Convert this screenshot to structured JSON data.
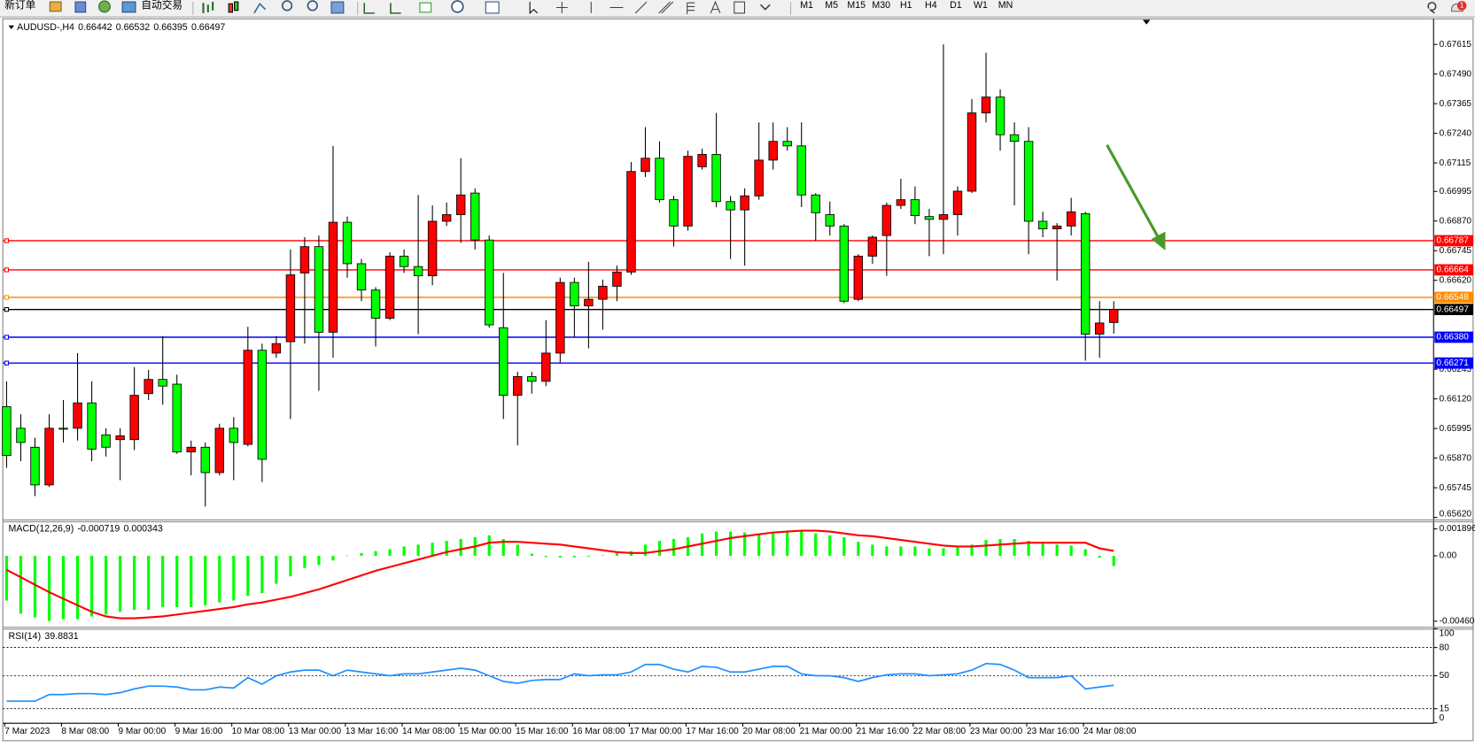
{
  "toolbar": {
    "buttons": [
      "新订单",
      "自动交易"
    ],
    "timeframes": [
      "M1",
      "M5",
      "M15",
      "M30",
      "H1",
      "H4",
      "D1",
      "W1",
      "MN"
    ],
    "badge": "1"
  },
  "chart_data": [
    {
      "type": "candlestick",
      "title": "AUDUSD-,H4",
      "categories": [
        "7 Mar 2023",
        null,
        null,
        null,
        "8 Mar 08:00",
        null,
        null,
        null,
        "9 Mar 00:00",
        null,
        null,
        null,
        "9 Mar 16:00",
        null,
        null,
        null,
        "10 Mar 08:00",
        null,
        null,
        null,
        "13 Mar 00:00",
        null,
        null,
        null,
        "13 Mar 16:00",
        null,
        null,
        null,
        "14 Mar 08:00",
        null,
        null,
        null,
        "15 Mar 00:00",
        null,
        null,
        null,
        "15 Mar 16:00",
        null,
        null,
        null,
        "16 Mar 08:00",
        null,
        null,
        null,
        "17 Mar 00:00",
        null,
        null,
        null,
        "17 Mar 16:00",
        null,
        null,
        null,
        "20 Mar 08:00",
        null,
        null,
        null,
        "21 Mar 00:00",
        null,
        null,
        null,
        "21 Mar 16:00",
        null,
        null,
        null,
        "22 Mar 08:00",
        null,
        null,
        null,
        "23 Mar 00:00",
        null,
        null,
        null,
        "23 Mar 16:00",
        null,
        null,
        null,
        "24 Mar 08:00",
        null,
        null
      ],
      "open": [
        0.66087,
        0.65996,
        0.65916,
        0.65757,
        0.65996,
        0.65996,
        0.66103,
        0.65968,
        0.65948,
        0.65948,
        0.66142,
        0.66202,
        0.66182,
        0.65896,
        0.65916,
        0.65809,
        0.65996,
        0.65928,
        0.66325,
        0.66313,
        0.66361,
        0.66651,
        0.66762,
        0.66401,
        0.66865,
        0.6669,
        0.66579,
        0.6646,
        0.66722,
        0.66678,
        0.66639,
        0.66869,
        0.66897,
        0.66988,
        0.6679,
        0.6642,
        0.66135,
        0.66214,
        0.66194,
        0.66313,
        0.66611,
        0.66512,
        0.6654,
        0.66595,
        0.66655,
        0.67079,
        0.67135,
        0.6696,
        0.66849,
        0.67099,
        0.67151,
        0.66952,
        0.66917,
        0.66976,
        0.67127,
        0.67206,
        0.67187,
        0.6698,
        0.66897,
        0.66849,
        0.6654,
        0.66722,
        0.66809,
        0.66936,
        0.6696,
        0.66889,
        0.66877,
        0.66897,
        0.66996,
        0.67326,
        0.67393,
        0.67234,
        0.67206,
        0.66869,
        0.66837,
        0.66849,
        0.66901,
        0.66393,
        0.66442
      ],
      "high": [
        0.66194,
        0.66055,
        0.65956,
        0.66055,
        0.66115,
        0.66313,
        0.66194,
        0.65996,
        0.65996,
        0.66254,
        0.66242,
        0.66385,
        0.66222,
        0.65944,
        0.65936,
        0.66015,
        0.66043,
        0.66424,
        0.66353,
        0.66385,
        0.6675,
        0.66802,
        0.66809,
        0.67187,
        0.66889,
        0.6671,
        0.66591,
        0.66738,
        0.6675,
        0.6698,
        0.66936,
        0.66948,
        0.67135,
        0.67008,
        0.66809,
        0.66651,
        0.66234,
        0.66234,
        0.66452,
        0.66631,
        0.66631,
        0.66698,
        0.66623,
        0.66682,
        0.67119,
        0.67266,
        0.67206,
        0.66976,
        0.67167,
        0.67175,
        0.67326,
        0.66976,
        0.67008,
        0.67286,
        0.67286,
        0.67266,
        0.67286,
        0.66988,
        0.66952,
        0.66857,
        0.6673,
        0.66809,
        0.66948,
        0.67048,
        0.67016,
        0.66921,
        0.67615,
        0.67016,
        0.67385,
        0.6758,
        0.67425,
        0.67286,
        0.67266,
        0.66909,
        0.66861,
        0.66968,
        0.66909,
        0.66532,
        0.66532
      ],
      "low": [
        0.65829,
        0.65857,
        0.6571,
        0.65749,
        0.65936,
        0.65944,
        0.65857,
        0.65877,
        0.65777,
        0.65904,
        0.66115,
        0.66095,
        0.65888,
        0.65797,
        0.65666,
        0.65797,
        0.65777,
        0.6592,
        0.65769,
        0.66293,
        0.66035,
        0.66353,
        0.66154,
        0.66293,
        0.66631,
        0.66532,
        0.66341,
        0.66452,
        0.66651,
        0.66393,
        0.66599,
        0.66849,
        0.66778,
        0.6675,
        0.6642,
        0.66035,
        0.65924,
        0.66142,
        0.66174,
        0.66274,
        0.66381,
        0.66333,
        0.66412,
        0.66532,
        0.66643,
        0.67056,
        0.66948,
        0.66762,
        0.66829,
        0.67087,
        0.66929,
        0.6671,
        0.66682,
        0.6696,
        0.67087,
        0.67167,
        0.66929,
        0.66786,
        0.66809,
        0.66524,
        0.66532,
        0.6669,
        0.66639,
        0.66921,
        0.66857,
        0.66722,
        0.6673,
        0.66809,
        0.66988,
        0.67286,
        0.67167,
        0.66936,
        0.6673,
        0.66802,
        0.66619,
        0.66809,
        0.66281,
        0.66293,
        0.66395
      ],
      "close": [
        0.65881,
        0.65936,
        0.65757,
        0.65996,
        0.65993,
        0.66103,
        0.65908,
        0.65916,
        0.65964,
        0.66135,
        0.66202,
        0.66174,
        0.65896,
        0.65916,
        0.65809,
        0.65996,
        0.65936,
        0.66325,
        0.65865,
        0.66353,
        0.66643,
        0.66762,
        0.66401,
        0.66865,
        0.6669,
        0.66579,
        0.6646,
        0.66722,
        0.66678,
        0.66639,
        0.66869,
        0.66897,
        0.6698,
        0.6679,
        0.66432,
        0.66135,
        0.66214,
        0.66194,
        0.66313,
        0.66611,
        0.66512,
        0.6654,
        0.66595,
        0.66655,
        0.67079,
        0.67135,
        0.6696,
        0.66849,
        0.67143,
        0.67151,
        0.66952,
        0.66917,
        0.66976,
        0.67127,
        0.67206,
        0.67187,
        0.6698,
        0.66905,
        0.66849,
        0.66532,
        0.66722,
        0.66802,
        0.66936,
        0.6696,
        0.66893,
        0.66877,
        0.66897,
        0.66996,
        0.67326,
        0.67393,
        0.67234,
        0.67206,
        0.66869,
        0.66837,
        0.66849,
        0.66909,
        0.66393,
        0.6644,
        0.66497
      ],
      "up_color": "#ff0000",
      "down_color": "#00ff00",
      "wick_color": "#000000",
      "ylim": [
        0.65615,
        0.67715
      ],
      "yticks": [
        0.67615,
        {
          "value": 0.6749,
          "label": "0.67490"
        },
        0.67365,
        {
          "value": 0.6724,
          "label": "0.67240"
        },
        0.67115,
        0.66995,
        {
          "value": 0.6687,
          "label": "0.66870"
        },
        0.66745,
        {
          "value": 0.6662,
          "label": "0.66620"
        },
        0.66245,
        {
          "value": 0.6612,
          "label": "0.66120"
        },
        0.65995,
        {
          "value": 0.6587,
          "label": "0.65870"
        },
        0.65745,
        {
          "value": 0.6562,
          "label": "0.65620"
        }
      ],
      "grid": false,
      "levels": [
        {
          "value": 0.66787,
          "color": "#ff0000"
        },
        {
          "value": 0.66664,
          "color": "#ff0000"
        },
        {
          "value": 0.66548,
          "color": "#ff8c00"
        },
        {
          "value": 0.66497,
          "color": "#000000"
        },
        {
          "value": 0.6638,
          "label": "0.66380",
          "color": "#0000ff"
        },
        {
          "value": 0.66271,
          "color": "#0000ff"
        }
      ]
    },
    {
      "type": "macd",
      "title": "MACD(12,26,9)",
      "histogram": [
        -0.003153,
        -0.004072,
        -0.004335,
        -0.004597,
        -0.004466,
        -0.004466,
        -0.004269,
        -0.004138,
        -0.003941,
        -0.00381,
        -0.00381,
        -0.003612,
        -0.003612,
        -0.003612,
        -0.003481,
        -0.003284,
        -0.003153,
        -0.002824,
        -0.002627,
        -0.00197,
        -0.001445,
        -0.000854,
        -0.000657,
        -0.000328,
        2e-05,
        0.000197,
        0.000328,
        0.00046,
        0.000657,
        0.000788,
        0.000919,
        0.001051,
        0.001182,
        0.001314,
        0.001445,
        0.001182,
        0.000788,
        0.00015,
        -8e-05,
        -0.00012,
        -0.0001,
        -6e-05,
        3e-05,
        0.000197,
        0.000328,
        0.000788,
        0.001051,
        0.001182,
        0.001314,
        0.001576,
        0.001708,
        0.001708,
        0.001642,
        0.001576,
        0.001576,
        0.001708,
        0.001708,
        0.001576,
        0.001445,
        0.001314,
        0.000985,
        0.000788,
        0.000657,
        0.000657,
        0.000657,
        0.000525,
        0.000525,
        0.000657,
        0.000788,
        0.001117,
        0.001182,
        0.001182,
        0.001051,
        0.000854,
        0.000788,
        0.000722,
        0.00046,
        -0.000131,
        -0.000719
      ],
      "signal": [
        -0.000985,
        -0.001511,
        -0.002036,
        -0.002561,
        -0.003021,
        -0.003481,
        -0.003941,
        -0.004269,
        -0.0044,
        -0.0044,
        -0.004335,
        -0.004269,
        -0.004138,
        -0.004006,
        -0.003875,
        -0.003744,
        -0.003612,
        -0.003415,
        -0.003284,
        -0.003087,
        -0.00289,
        -0.002627,
        -0.002364,
        -0.002036,
        -0.001708,
        -0.001379,
        -0.001051,
        -0.000788,
        -0.000525,
        -0.000263,
        0,
        0.000263,
        0.00046,
        0.000657,
        0.000919,
        0.000985,
        0.000985,
        0.000919,
        0.000854,
        0.000788,
        0.000657,
        0.000525,
        0.000394,
        0.000263,
        0.000197,
        0.000197,
        0.000328,
        0.00046,
        0.000657,
        0.000854,
        0.001051,
        0.001248,
        0.001379,
        0.001511,
        0.001642,
        0.001708,
        0.001773,
        0.001773,
        0.001708,
        0.001576,
        0.001445,
        0.001379,
        0.001248,
        0.001117,
        0.000985,
        0.000854,
        0.000722,
        0.000657,
        0.000657,
        0.000722,
        0.000788,
        0.000854,
        0.000919,
        0.000919,
        0.000919,
        0.000919,
        0.000919,
        0.000525,
        0.000343
      ],
      "histogram_color": "#00ff00",
      "signal_color": "#ff0000",
      "ylim": [
        -0.005,
        0.002356
      ],
      "yticks": [
        0.001896,
        {
          "value": 0,
          "label": "0.00"
        },
        -0.004606
      ],
      "grid": false
    },
    {
      "type": "line",
      "title": "RSI(14)",
      "values": [
        23,
        23,
        23,
        30,
        30,
        31,
        31,
        30,
        32,
        36,
        39,
        39,
        38,
        35,
        35,
        38,
        37,
        48,
        41,
        50,
        54,
        56,
        56,
        50,
        56,
        54,
        52,
        50,
        52,
        52,
        54,
        56,
        58,
        56,
        50,
        44,
        42,
        45,
        46,
        46,
        52,
        50,
        51,
        51,
        54,
        62,
        62,
        57,
        54,
        60,
        59,
        54,
        54,
        57,
        60,
        60,
        52,
        50,
        50,
        48,
        44,
        48,
        51,
        52,
        52,
        50,
        51,
        52,
        56,
        63,
        62,
        56,
        48,
        48,
        48,
        50,
        36,
        38,
        39.8831
      ],
      "color": "#1e90ff",
      "ylim": [
        0,
        100
      ],
      "yticks": [
        100,
        80,
        50,
        15,
        0
      ],
      "grid": true
    }
  ]
}
